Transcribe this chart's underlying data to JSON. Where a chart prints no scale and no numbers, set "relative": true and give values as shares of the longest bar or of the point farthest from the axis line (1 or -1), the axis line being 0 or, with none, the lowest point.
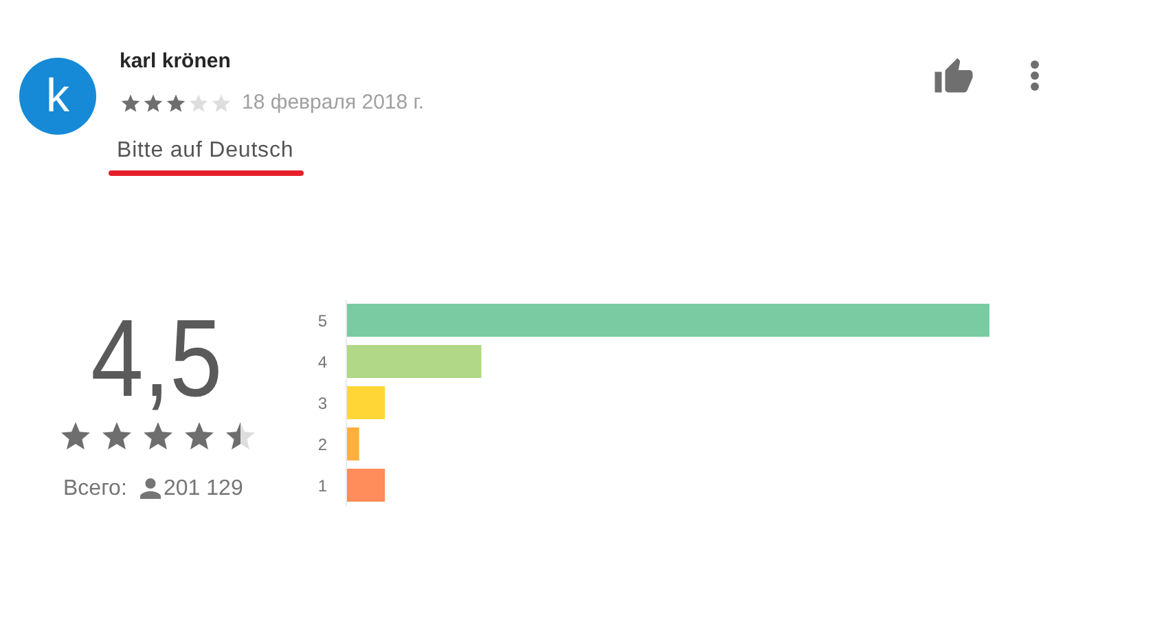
{
  "chart_data": {
    "type": "bar",
    "orientation": "horizontal",
    "relative": true,
    "categories": [
      "5",
      "4",
      "3",
      "2",
      "1"
    ],
    "values": [
      1,
      0.21,
      0.06,
      0.02,
      0.06
    ],
    "colors": [
      "#7bcba2",
      "#b0d886",
      "#ffd636",
      "#ffb03b",
      "#ff8c5a"
    ],
    "annotations": [
      "k",
      "karl krönen",
      "18 февраля 2018 г.",
      "Bitte auf Deutsch",
      "4,5",
      "Всего:",
      "201 129"
    ]
  }
}
